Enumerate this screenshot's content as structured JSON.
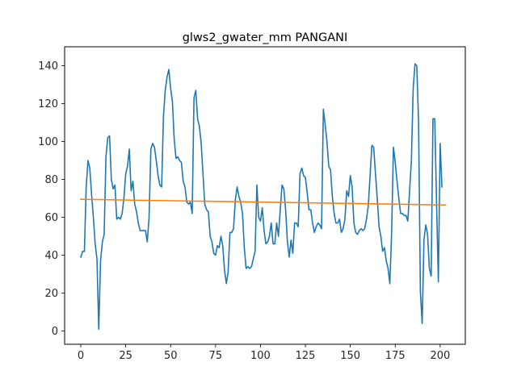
{
  "chart_data": {
    "type": "line",
    "title": "glws2_gwater_mm PANGANI",
    "xlabel": "",
    "ylabel": "",
    "xlim": [
      -9,
      214
    ],
    "ylim": [
      -7,
      150
    ],
    "x_ticks": [
      0,
      25,
      50,
      75,
      100,
      125,
      150,
      175,
      200
    ],
    "y_ticks": [
      0,
      20,
      40,
      60,
      80,
      100,
      120,
      140
    ],
    "grid": false,
    "legend": "none",
    "series": [
      {
        "color": "#1f77b4",
        "x_start": 0,
        "values": [
          39,
          42,
          42,
          76,
          90,
          86,
          72,
          60,
          46,
          38,
          1,
          37,
          47,
          51,
          92,
          102,
          103,
          80,
          75,
          77,
          59,
          60,
          59,
          62,
          70,
          83,
          87,
          96,
          74,
          79,
          67,
          63,
          57,
          53,
          53,
          53,
          53,
          47,
          60,
          96,
          99,
          97,
          90,
          82,
          77,
          76,
          113,
          127,
          134,
          138,
          128,
          121,
          101,
          91,
          92,
          90,
          89,
          79,
          76,
          68,
          67,
          68,
          62,
          123,
          127,
          112,
          108,
          99,
          83,
          67,
          64,
          63,
          50,
          47,
          41,
          40,
          45,
          44,
          50,
          45,
          32,
          25,
          31,
          52,
          52,
          54,
          69,
          76,
          71,
          68,
          62,
          44,
          33,
          34,
          33,
          34,
          38,
          42,
          77,
          60,
          58,
          65,
          53,
          46,
          47,
          50,
          57,
          46,
          46,
          57,
          50,
          64,
          77,
          75,
          64,
          47,
          39,
          48,
          41,
          57,
          57,
          55,
          83,
          86,
          82,
          81,
          73,
          64,
          64,
          57,
          52,
          55,
          57,
          56,
          54,
          117,
          109,
          100,
          87,
          85,
          71,
          62,
          57,
          57,
          59,
          52,
          54,
          59,
          74,
          71,
          82,
          76,
          57,
          52,
          51,
          53,
          54,
          53,
          54,
          59,
          66,
          82,
          98,
          97,
          83,
          70,
          55,
          50,
          42,
          44,
          37,
          33,
          25,
          52,
          97,
          89,
          79,
          70,
          62,
          62,
          61,
          61,
          58,
          74,
          90,
          128,
          141,
          140,
          110,
          21,
          4,
          48,
          56,
          51,
          33,
          29,
          112,
          112,
          68,
          26,
          99,
          76
        ]
      },
      {
        "color": "#ff7f0e",
        "x": [
          0,
          203
        ],
        "values": [
          69.5,
          66.5
        ]
      }
    ]
  }
}
